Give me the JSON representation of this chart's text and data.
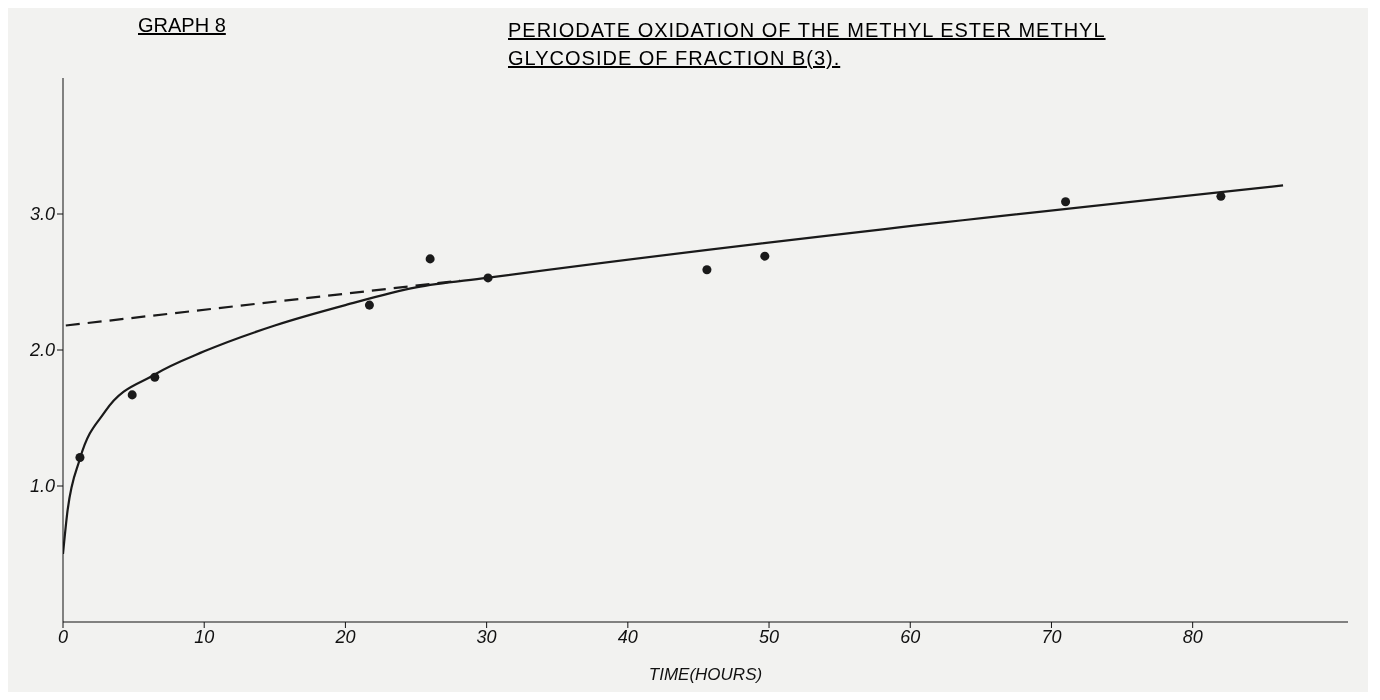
{
  "chart_data": {
    "type": "scatter",
    "title": "GRAPH 8",
    "subtitle": "PERIODATE OXIDATION OF THE METHYL ESTER METHYL GLYCOSIDE OF FRACTION B(3).",
    "xlabel": "TIME(HOURS)",
    "xlim": [
      0,
      91
    ],
    "xticks": [
      0,
      10,
      20,
      30,
      40,
      50,
      60,
      70,
      80
    ],
    "ylim": [
      0,
      4
    ],
    "yticks": [
      {
        "value": 1,
        "label": "1.0"
      },
      {
        "value": 2,
        "label": "2.0"
      },
      {
        "value": 3,
        "label": "3.0"
      }
    ],
    "grid": false,
    "series": [
      {
        "color": "#1a1a1a",
        "marker": "circle",
        "x": [
          1.2,
          4.9,
          6.5,
          21.7,
          26,
          30.1,
          45.6,
          49.7,
          71,
          82
        ],
        "values": [
          1.21,
          1.67,
          1.8,
          2.33,
          2.67,
          2.53,
          2.59,
          2.69,
          3.09,
          3.13
        ]
      },
      {
        "type": "line",
        "color": "#1a1a1a",
        "marker": "none",
        "line_style": "solid",
        "x": [
          0,
          0.3,
          1.2,
          3,
          6.5,
          10,
          15,
          20,
          25,
          30,
          86.4
        ],
        "values": [
          0.5,
          0.8,
          1.2,
          1.55,
          1.82,
          1.99,
          2.18,
          2.33,
          2.46,
          2.53,
          3.21
        ]
      },
      {
        "type": "line",
        "color": "#1a1a1a",
        "marker": "none",
        "line_style": "dashed",
        "x": [
          0.2,
          28.1
        ],
        "values": [
          2.18,
          2.51
        ]
      }
    ]
  }
}
